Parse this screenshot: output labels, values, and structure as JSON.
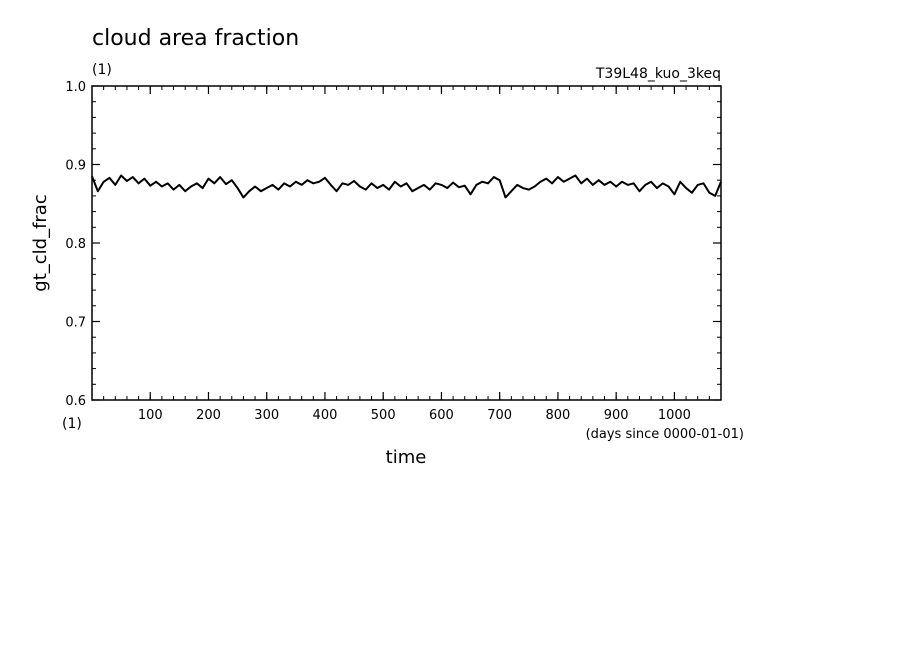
{
  "chart_data": {
    "type": "line",
    "title": "cloud area fraction",
    "title_unit": "(1)",
    "run_label": "T39L48_kuo_3keq",
    "xlabel": "time",
    "xunit": "(days since 0000-01-01)",
    "ylabel": "gt_cld_frac",
    "yunit": "(1)",
    "xlim": [
      0,
      1080
    ],
    "ylim": [
      0.6,
      1.0
    ],
    "xticks": [
      100,
      200,
      300,
      400,
      500,
      600,
      700,
      800,
      900,
      1000
    ],
    "xtick_labels": [
      "100",
      "200",
      "300",
      "400",
      "500",
      "600",
      "700",
      "800",
      "900",
      "1000"
    ],
    "yticks": [
      0.6,
      0.7,
      0.8,
      0.9,
      1.0
    ],
    "ytick_labels": [
      "0.6",
      "0.7",
      "0.8",
      "0.9",
      "1.0"
    ],
    "grid": false,
    "series": [
      {
        "color": "#000000",
        "x": [
          0,
          10,
          20,
          30,
          40,
          50,
          60,
          70,
          80,
          90,
          100,
          110,
          120,
          130,
          140,
          150,
          160,
          170,
          180,
          190,
          200,
          210,
          220,
          230,
          240,
          250,
          260,
          270,
          280,
          290,
          300,
          310,
          320,
          330,
          340,
          350,
          360,
          370,
          380,
          390,
          400,
          410,
          420,
          430,
          440,
          450,
          460,
          470,
          480,
          490,
          500,
          510,
          520,
          530,
          540,
          550,
          560,
          570,
          580,
          590,
          600,
          610,
          620,
          630,
          640,
          650,
          660,
          670,
          680,
          690,
          700,
          710,
          720,
          730,
          740,
          750,
          760,
          770,
          780,
          790,
          800,
          810,
          820,
          830,
          840,
          850,
          860,
          870,
          880,
          890,
          900,
          910,
          920,
          930,
          940,
          950,
          960,
          970,
          980,
          990,
          1000,
          1010,
          1020,
          1030,
          1040,
          1050,
          1060,
          1070,
          1080
        ],
        "y": [
          0.885,
          0.866,
          0.878,
          0.883,
          0.874,
          0.886,
          0.879,
          0.884,
          0.876,
          0.882,
          0.873,
          0.878,
          0.872,
          0.876,
          0.868,
          0.874,
          0.866,
          0.872,
          0.876,
          0.87,
          0.882,
          0.876,
          0.884,
          0.875,
          0.88,
          0.87,
          0.858,
          0.866,
          0.872,
          0.866,
          0.87,
          0.874,
          0.868,
          0.876,
          0.872,
          0.878,
          0.874,
          0.88,
          0.876,
          0.878,
          0.883,
          0.874,
          0.866,
          0.876,
          0.874,
          0.879,
          0.872,
          0.868,
          0.876,
          0.87,
          0.874,
          0.868,
          0.878,
          0.872,
          0.876,
          0.866,
          0.87,
          0.874,
          0.868,
          0.876,
          0.874,
          0.87,
          0.877,
          0.871,
          0.873,
          0.862,
          0.874,
          0.878,
          0.876,
          0.884,
          0.88,
          0.858,
          0.866,
          0.874,
          0.87,
          0.868,
          0.872,
          0.878,
          0.882,
          0.876,
          0.884,
          0.878,
          0.882,
          0.886,
          0.876,
          0.882,
          0.874,
          0.88,
          0.874,
          0.878,
          0.872,
          0.878,
          0.874,
          0.876,
          0.866,
          0.874,
          0.878,
          0.87,
          0.876,
          0.872,
          0.862,
          0.878,
          0.87,
          0.864,
          0.874,
          0.876,
          0.864,
          0.86,
          0.878
        ]
      }
    ]
  }
}
